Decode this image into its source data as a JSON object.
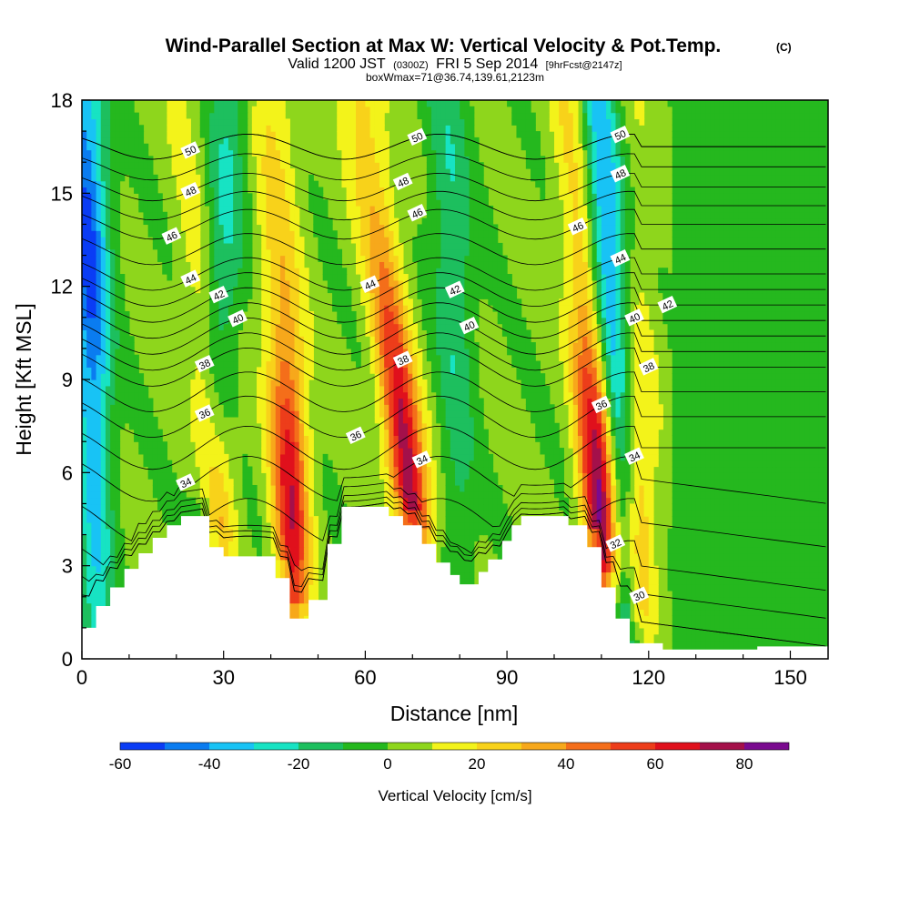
{
  "title": {
    "main": "Wind-Parallel Section at Max W: Vertical Velocity & Pot.Temp.",
    "copyright": "(C)",
    "valid_prefix": "Valid 1200 JST",
    "valid_utc": "(0300Z)",
    "valid_date": "FRI 5 Sep 2014",
    "forecast_info": "[9hrFcst@2147z]",
    "box_info": "boxWmax=71@36.74,139.61,2123m"
  },
  "chart_data": {
    "type": "heatmap",
    "xlabel": "Distance [nm]",
    "ylabel": "Height [Kft MSL]",
    "xlim": [
      0,
      158
    ],
    "ylim": [
      0,
      18
    ],
    "x_ticks": [
      "0",
      "30",
      "60",
      "90",
      "120",
      "150"
    ],
    "y_ticks": [
      "0",
      "3",
      "6",
      "9",
      "12",
      "15",
      "18"
    ],
    "colorbar": {
      "title": "Vertical Velocity [cm/s]",
      "tick_labels": [
        "-60",
        "-40",
        "-20",
        "0",
        "20",
        "40",
        "60",
        "80"
      ],
      "boundaries": [
        -60,
        -50,
        -40,
        -30,
        -20,
        -10,
        0,
        10,
        20,
        30,
        40,
        50,
        60,
        70,
        80,
        90
      ],
      "colors": [
        "#0a3cf5",
        "#0a7cf0",
        "#18c3f5",
        "#17e3c3",
        "#1dbf5e",
        "#25b81e",
        "#8ed61c",
        "#f3f31a",
        "#f8d21a",
        "#f7a81b",
        "#f46e1a",
        "#ed3d1a",
        "#e0101c",
        "#a4104a",
        "#7a0a8f"
      ]
    },
    "background_color": "#8ed61c",
    "updraft_bands": [
      {
        "x_bottom": 30,
        "x_top": 25,
        "w": 28
      },
      {
        "x_bottom": 45,
        "x_top": 43,
        "w": 55
      },
      {
        "x_bottom": 73,
        "x_top": 62,
        "w": 65
      },
      {
        "x_bottom": 111,
        "x_top": 107,
        "w": 71
      },
      {
        "x_bottom": 118,
        "x_top": 118,
        "w": 25
      }
    ],
    "downdraft_bands": [
      {
        "x_bottom": 3,
        "x_top": 3,
        "w": -55
      },
      {
        "x_bottom": 24,
        "x_top": 34,
        "w": -25
      },
      {
        "x_bottom": 80,
        "x_top": 80,
        "w": -22
      },
      {
        "x_bottom": 115,
        "x_top": 112,
        "w": -55
      }
    ],
    "terrain": [
      {
        "x": 0,
        "h": 1.0
      },
      {
        "x": 3,
        "h": 1.7
      },
      {
        "x": 6,
        "h": 2.3
      },
      {
        "x": 9,
        "h": 2.9
      },
      {
        "x": 12,
        "h": 3.4
      },
      {
        "x": 15,
        "h": 3.9
      },
      {
        "x": 18,
        "h": 4.3
      },
      {
        "x": 21,
        "h": 4.6
      },
      {
        "x": 25,
        "h": 4.6
      },
      {
        "x": 27,
        "h": 3.6
      },
      {
        "x": 30,
        "h": 3.3
      },
      {
        "x": 38,
        "h": 3.3
      },
      {
        "x": 41,
        "h": 2.6
      },
      {
        "x": 44,
        "h": 1.3
      },
      {
        "x": 48,
        "h": 1.9
      },
      {
        "x": 52,
        "h": 3.7
      },
      {
        "x": 55,
        "h": 4.9
      },
      {
        "x": 65,
        "h": 4.6
      },
      {
        "x": 68,
        "h": 4.3
      },
      {
        "x": 72,
        "h": 3.7
      },
      {
        "x": 75,
        "h": 3.1
      },
      {
        "x": 78,
        "h": 2.7
      },
      {
        "x": 80,
        "h": 2.4
      },
      {
        "x": 84,
        "h": 2.8
      },
      {
        "x": 86,
        "h": 3.2
      },
      {
        "x": 89,
        "h": 3.8
      },
      {
        "x": 91,
        "h": 4.3
      },
      {
        "x": 93,
        "h": 4.6
      },
      {
        "x": 100,
        "h": 4.6
      },
      {
        "x": 103,
        "h": 4.3
      },
      {
        "x": 107,
        "h": 3.6
      },
      {
        "x": 110,
        "h": 2.3
      },
      {
        "x": 113,
        "h": 1.3
      },
      {
        "x": 116,
        "h": 0.5
      },
      {
        "x": 123,
        "h": 0.3
      },
      {
        "x": 143,
        "h": 0.4
      },
      {
        "x": 158,
        "h": 0.6
      }
    ],
    "isentropes": [
      {
        "theta": 30,
        "h": 1.2
      },
      {
        "theta": 32,
        "h": 3.0
      },
      {
        "theta": 34,
        "h": 5.8
      },
      {
        "theta": 36,
        "h": 7.8
      },
      {
        "theta": 38,
        "h": 9.4
      },
      {
        "theta": 40,
        "h": 10.4
      },
      {
        "theta": 42,
        "h": 11.4
      },
      {
        "theta": 44,
        "h": 12.4
      },
      {
        "theta": 46,
        "h": 14.0
      },
      {
        "theta": 48,
        "h": 15.2
      },
      {
        "theta": 50,
        "h": 16.5
      }
    ],
    "isentrope_label_positions": [
      {
        "theta": 50,
        "x": 23
      },
      {
        "theta": 48,
        "x": 23
      },
      {
        "theta": 46,
        "x": 19
      },
      {
        "theta": 44,
        "x": 23
      },
      {
        "theta": 42,
        "x": 29
      },
      {
        "theta": 40,
        "x": 33
      },
      {
        "theta": 38,
        "x": 26
      },
      {
        "theta": 36,
        "x": 26
      },
      {
        "theta": 34,
        "x": 22
      },
      {
        "theta": 50,
        "x": 71
      },
      {
        "theta": 48,
        "x": 68
      },
      {
        "theta": 46,
        "x": 71
      },
      {
        "theta": 44,
        "x": 61
      },
      {
        "theta": 42,
        "x": 79
      },
      {
        "theta": 40,
        "x": 82
      },
      {
        "theta": 38,
        "x": 68
      },
      {
        "theta": 36,
        "x": 58
      },
      {
        "theta": 34,
        "x": 72
      },
      {
        "theta": 50,
        "x": 114
      },
      {
        "theta": 48,
        "x": 114
      },
      {
        "theta": 46,
        "x": 105
      },
      {
        "theta": 44,
        "x": 114
      },
      {
        "theta": 42,
        "x": 124
      },
      {
        "theta": 40,
        "x": 117
      },
      {
        "theta": 38,
        "x": 120
      },
      {
        "theta": 36,
        "x": 110
      },
      {
        "theta": 34,
        "x": 117
      },
      {
        "theta": 32,
        "x": 113
      },
      {
        "theta": 30,
        "x": 118
      }
    ]
  }
}
